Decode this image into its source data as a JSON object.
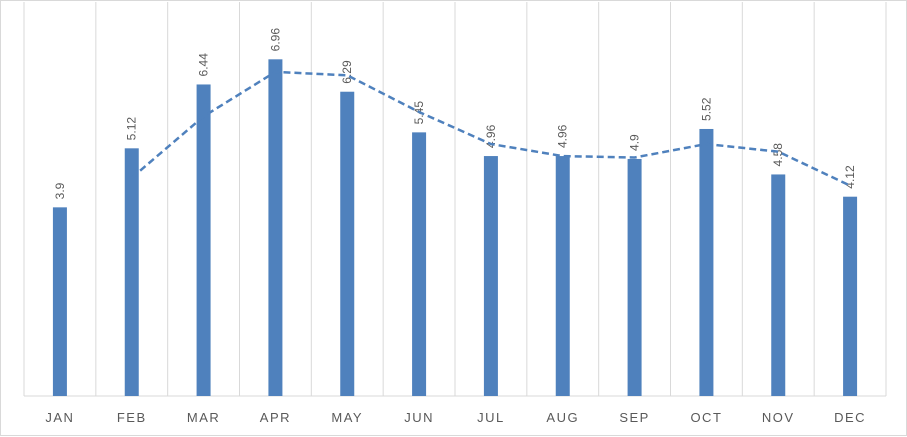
{
  "chart_data": {
    "type": "bar",
    "categories": [
      "JAN",
      "FEB",
      "MAR",
      "APR",
      "MAY",
      "JUN",
      "JUL",
      "AUG",
      "SEP",
      "OCT",
      "NOV",
      "DEC"
    ],
    "series": [
      {
        "type": "bar",
        "values": [
          3.9,
          5.12,
          6.44,
          6.96,
          6.29,
          5.45,
          4.96,
          4.96,
          4.9,
          5.52,
          4.58,
          4.12
        ],
        "color": "#4f81bd",
        "data_labels": [
          "3.9",
          "5.12",
          "6.44",
          "6.96",
          "6.29",
          "5.45",
          "4.96",
          "4.96",
          "4.9",
          "5.52",
          "4.58",
          "4.12"
        ]
      },
      {
        "type": "line",
        "style": "dashed",
        "color": "#4f81bd",
        "x": [
          "FEB",
          "MAR",
          "APR",
          "MAY",
          "JUN",
          "JUL",
          "AUG",
          "SEP",
          "OCT",
          "NOV",
          "DEC"
        ],
        "values": [
          4.51,
          5.78,
          6.7,
          6.63,
          5.87,
          5.21,
          4.96,
          4.93,
          5.21,
          5.05,
          4.35
        ]
      }
    ],
    "ylim": [
      0,
      8
    ],
    "grid": {
      "vertical": true,
      "horizontal": false
    },
    "legend": "none",
    "title": "",
    "xlabel": "",
    "ylabel": ""
  }
}
